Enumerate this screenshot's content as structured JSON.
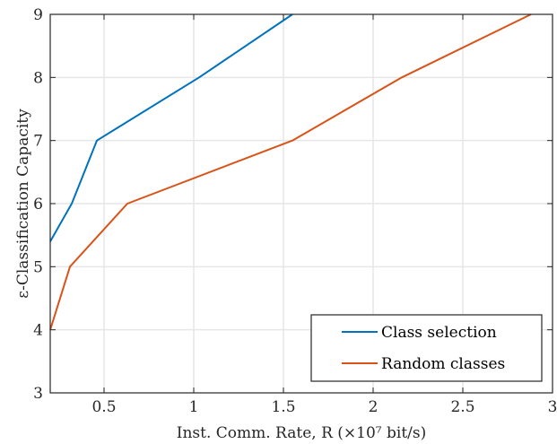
{
  "chart_data": {
    "type": "line",
    "xlabel": "Inst. Comm. Rate, R (×10⁷ bit/s)",
    "ylabel": "ε-Classification Capacity",
    "xlim": [
      0.2,
      3.0
    ],
    "ylim": [
      3,
      9
    ],
    "xticks": [
      0.5,
      1,
      1.5,
      2,
      2.5,
      3
    ],
    "xtick_labels": [
      "0.5",
      "1",
      "1.5",
      "2",
      "2.5",
      "3"
    ],
    "yticks": [
      3,
      4,
      5,
      6,
      7,
      8,
      9
    ],
    "ytick_labels": [
      "3",
      "4",
      "5",
      "6",
      "7",
      "8",
      "9"
    ],
    "grid": true,
    "legend_position": "bottom-right",
    "series": [
      {
        "name": "Class selection",
        "color": "#0072BD",
        "x": [
          0.2,
          0.32,
          0.46,
          1.03,
          1.55
        ],
        "y": [
          5.4,
          6,
          7,
          8,
          9
        ]
      },
      {
        "name": "Random classes",
        "color": "#D95319",
        "x": [
          0.2,
          0.31,
          0.63,
          1.55,
          2.16,
          2.88
        ],
        "y": [
          4,
          5,
          6,
          7,
          8,
          9
        ]
      }
    ]
  }
}
